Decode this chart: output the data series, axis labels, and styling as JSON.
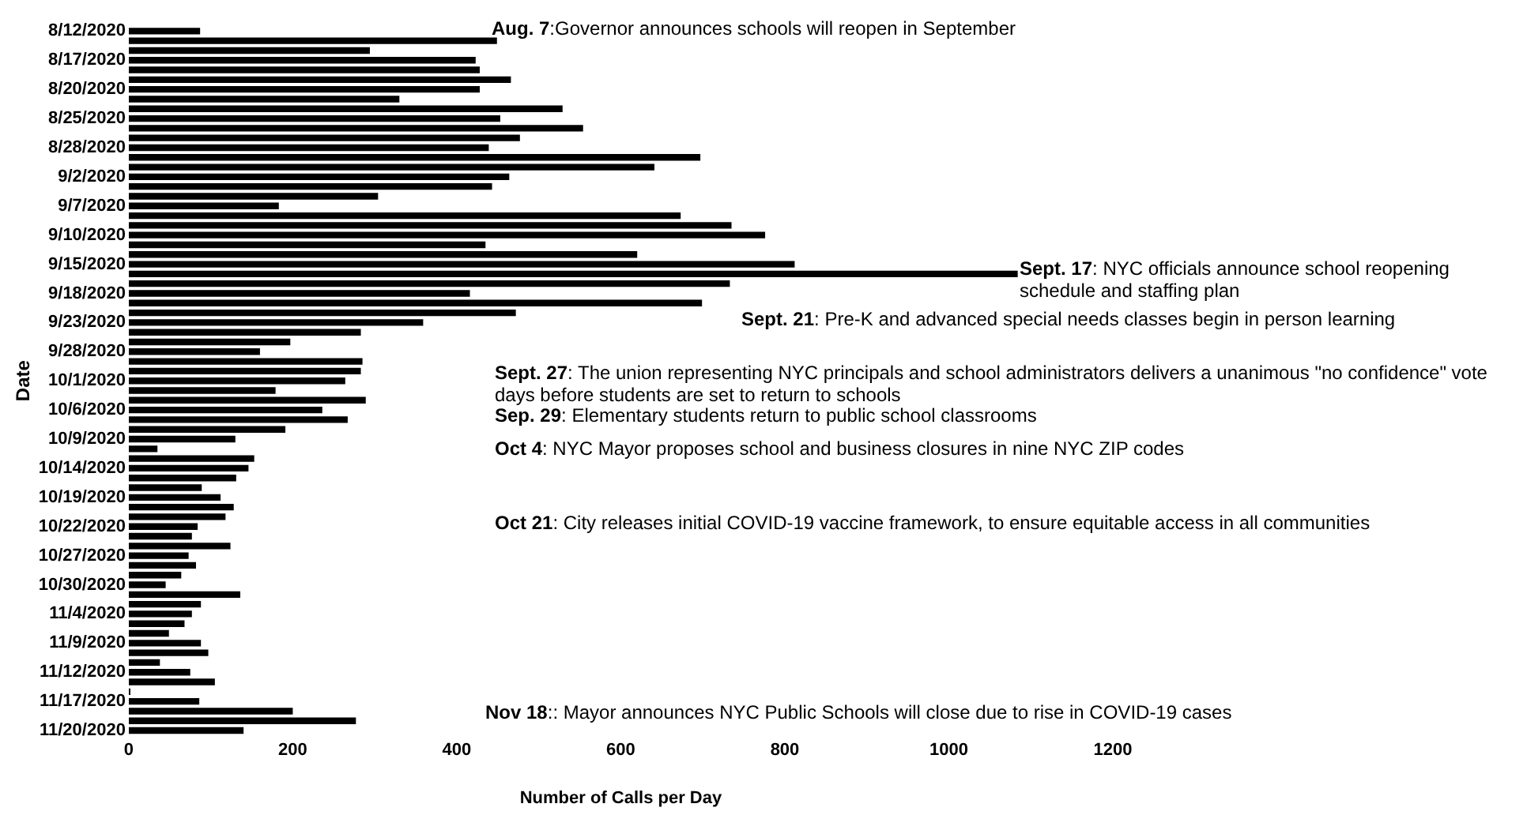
{
  "chart_data": {
    "type": "bar",
    "orientation": "horizontal",
    "xlabel": "Number of Calls per Day",
    "ylabel": "Date",
    "categories": [
      "8/12/2020",
      null,
      null,
      "8/17/2020",
      null,
      null,
      "8/20/2020",
      null,
      null,
      "8/25/2020",
      null,
      null,
      "8/28/2020",
      null,
      null,
      "9/2/2020",
      null,
      null,
      "9/7/2020",
      null,
      null,
      "9/10/2020",
      null,
      null,
      "9/15/2020",
      null,
      null,
      "9/18/2020",
      null,
      null,
      "9/23/2020",
      null,
      null,
      "9/28/2020",
      null,
      null,
      "10/1/2020",
      null,
      null,
      "10/6/2020",
      null,
      null,
      "10/9/2020",
      null,
      null,
      "10/14/2020",
      null,
      null,
      "10/19/2020",
      null,
      null,
      "10/22/2020",
      null,
      null,
      "10/27/2020",
      null,
      null,
      "10/30/2020",
      null,
      null,
      "11/4/2020",
      null,
      null,
      "11/9/2020",
      null,
      null,
      "11/12/2020",
      null,
      null,
      "11/17/2020",
      null,
      null,
      "11/20/2020"
    ],
    "values": [
      87,
      449,
      294,
      423,
      428,
      466,
      428,
      330,
      529,
      453,
      554,
      477,
      439,
      697,
      641,
      464,
      443,
      304,
      183,
      673,
      735,
      776,
      435,
      620,
      812,
      1084,
      733,
      416,
      699,
      472,
      359,
      283,
      197,
      160,
      285,
      283,
      264,
      179,
      289,
      236,
      267,
      191,
      130,
      35,
      153,
      146,
      131,
      89,
      112,
      128,
      118,
      84,
      77,
      124,
      73,
      82,
      64,
      45,
      136,
      88,
      77,
      68,
      49,
      88,
      97,
      38,
      75,
      105,
      2,
      86,
      200,
      277,
      140
    ],
    "color": "#000000",
    "xlim": [
      0,
      1200
    ],
    "xticks": [
      0,
      200,
      400,
      600,
      800,
      1000,
      1200
    ],
    "grid": false,
    "legend": false,
    "annotations": [
      "Aug. 7:Governor announces schools will reopen in September",
      "Sept. 17: NYC officials announce school reopening schedule and staffing plan",
      "Sept. 21: Pre-K and advanced special needs classes begin in person learning",
      "Sept. 27: The union representing NYC principals and school administrators delivers a unanimous \"no confidence\" vote days before students are set to return to schools",
      "Sep. 29: Elementary students return to public school classrooms",
      "Oct 4: NYC Mayor proposes school and business closures in nine NYC ZIP codes",
      "Oct 21: City releases initial COVID-19 vaccine framework, to ensure equitable access in all communities",
      "Nov 18:: Mayor announces NYC Public Schools will close due to rise in COVID-19 cases"
    ]
  }
}
